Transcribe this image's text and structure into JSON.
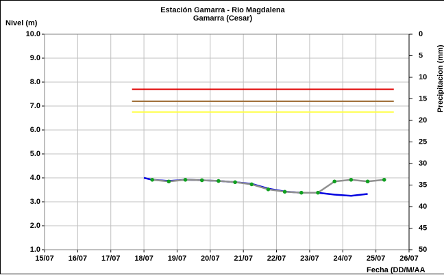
{
  "chart_data": {
    "type": "line",
    "title": "Estación Gamarra - Rio Magdalena",
    "subtitle": "Gamarra (Cesar)",
    "y_label": "Nivel (m)",
    "y2_label": "Precipitacion (mm)",
    "x_label": "Fecha (DD/M/AA",
    "xlim": [
      15,
      26
    ],
    "xticks": [
      {
        "value": 15,
        "label": "15/07"
      },
      {
        "value": 16,
        "label": "16/07"
      },
      {
        "value": 17,
        "label": "17/07"
      },
      {
        "value": 18,
        "label": "18/07"
      },
      {
        "value": 19,
        "label": "19/07"
      },
      {
        "value": 20,
        "label": "20/07"
      },
      {
        "value": 21,
        "label": "21/07"
      },
      {
        "value": 22,
        "label": "22/07"
      },
      {
        "value": 23,
        "label": "23/07"
      },
      {
        "value": 24,
        "label": "24/07"
      },
      {
        "value": 25,
        "label": "25/07"
      },
      {
        "value": 26,
        "label": "26/07"
      }
    ],
    "ylim": [
      1,
      10
    ],
    "yticks": [
      {
        "value": 1,
        "label": "1.0"
      },
      {
        "value": 2,
        "label": "2.0"
      },
      {
        "value": 3,
        "label": "3.0"
      },
      {
        "value": 4,
        "label": "4.0"
      },
      {
        "value": 5,
        "label": "5.0"
      },
      {
        "value": 6,
        "label": "6.0"
      },
      {
        "value": 7,
        "label": "7.0"
      },
      {
        "value": 8,
        "label": "8.0"
      },
      {
        "value": 9,
        "label": "9.0"
      },
      {
        "value": 10,
        "label": "10.0"
      }
    ],
    "y2lim": [
      50,
      0
    ],
    "y2ticks": [
      0,
      5,
      10,
      15,
      20,
      25,
      30,
      35,
      40,
      45,
      50
    ],
    "grid": true,
    "thresholds": [
      {
        "color": "#e00000",
        "value": 7.7,
        "x": [
          17.64,
          25.54
        ]
      },
      {
        "color": "#a0703a",
        "value": 7.2,
        "x": [
          17.64,
          25.54
        ]
      },
      {
        "color": "#ffff40",
        "value": 6.75,
        "x": [
          17.64,
          25.54
        ]
      }
    ],
    "series": [
      {
        "color": "#0000e0",
        "x": [
          18.0,
          18.25,
          18.75,
          19.25,
          19.75,
          20.25,
          20.75,
          21.25,
          21.75,
          22.25,
          22.75,
          23.25,
          23.75,
          24.25,
          24.75
        ],
        "values": [
          4.0,
          3.92,
          3.87,
          3.92,
          3.9,
          3.87,
          3.82,
          3.75,
          3.55,
          3.43,
          3.38,
          3.38,
          3.3,
          3.25,
          3.33
        ]
      },
      {
        "color": "#909090",
        "marker_color": "#10a020",
        "x": [
          18.25,
          18.75,
          19.25,
          19.75,
          20.25,
          20.75,
          21.25,
          21.75,
          22.25,
          22.75,
          23.25,
          23.75,
          24.25,
          24.75,
          25.25
        ],
        "values": [
          3.92,
          3.85,
          3.92,
          3.9,
          3.87,
          3.82,
          3.73,
          3.52,
          3.42,
          3.38,
          3.38,
          3.85,
          3.92,
          3.85,
          3.92
        ]
      }
    ]
  }
}
